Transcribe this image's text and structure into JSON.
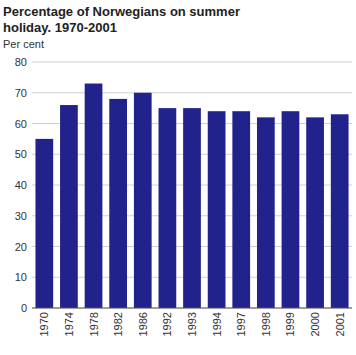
{
  "chart_data": {
    "type": "bar",
    "title": "Percentage of Norwegians on summer holiday. 1970-2001",
    "y_label": "Per cent",
    "categories": [
      "1970",
      "1974",
      "1978",
      "1982",
      "1986",
      "1992",
      "1993",
      "1994",
      "1997",
      "1998",
      "1999",
      "2000",
      "2001"
    ],
    "values": [
      55,
      66,
      73,
      68,
      70,
      65,
      65,
      64,
      64,
      62,
      64,
      62,
      63
    ],
    "color": "#22228c",
    "ylim": [
      0,
      80
    ],
    "yticks": [
      0,
      10,
      20,
      30,
      40,
      50,
      60,
      70,
      80
    ],
    "grid": true
  }
}
